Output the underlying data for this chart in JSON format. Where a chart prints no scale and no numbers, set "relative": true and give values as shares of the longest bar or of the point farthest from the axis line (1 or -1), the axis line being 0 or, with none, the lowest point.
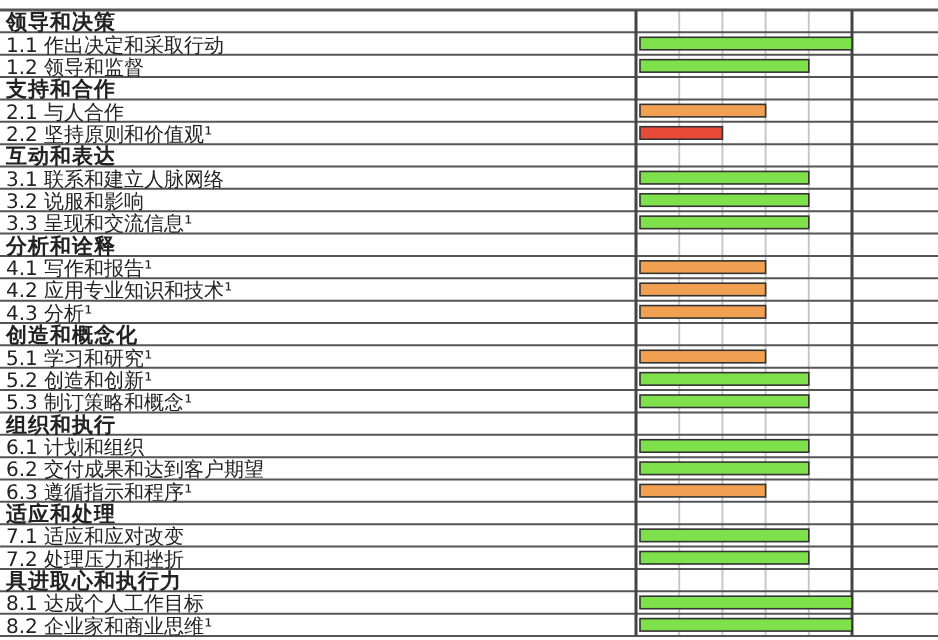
{
  "chart_data": {
    "type": "bar",
    "orientation": "horizontal",
    "relative": true,
    "grid": "x",
    "categories": [
      "领导和决策",
      "1.1 作出决定和采取行动",
      "1.2 领导和监督",
      "支持和合作",
      "2.1 与人合作",
      "2.2 坚持原则和价值观¹",
      "互动和表达",
      "3.1 联系和建立人脉网络",
      "3.2 说服和影响",
      "3.3 呈现和交流信息¹",
      "分析和诠释",
      "4.1 写作和报告¹",
      "4.2 应用专业知识和技术¹",
      "4.3 分析¹",
      "创造和概念化",
      "5.1 学习和研究¹",
      "5.2 创造和创新¹",
      "5.3 制订策略和概念¹",
      "组织和执行",
      "6.1 计划和组织",
      "6.2 交付成果和达到客户期望",
      "6.3 遵循指示和程序¹",
      "适应和处理",
      "7.1 适应和应对改变",
      "7.2 处理压力和挫折",
      "具进取心和执行力",
      "8.1 达成个人工作目标",
      "8.2 企业家和商业思维¹"
    ],
    "values": [
      null,
      1.0,
      0.8,
      null,
      0.6,
      0.4,
      null,
      0.8,
      0.8,
      0.8,
      null,
      0.6,
      0.6,
      0.6,
      null,
      0.6,
      0.8,
      0.8,
      null,
      0.8,
      0.8,
      0.6,
      null,
      0.8,
      0.8,
      null,
      1.0,
      1.0
    ],
    "colors": [
      null,
      "#7ee04a",
      "#7ee04a",
      null,
      "#f0a050",
      "#e84a3a",
      null,
      "#7ee04a",
      "#7ee04a",
      "#7ee04a",
      null,
      "#f0a050",
      "#f0a050",
      "#f0a050",
      null,
      "#f0a050",
      "#7ee04a",
      "#7ee04a",
      null,
      "#7ee04a",
      "#7ee04a",
      "#f0a050",
      null,
      "#7ee04a",
      "#7ee04a",
      null,
      "#7ee04a",
      "#7ee04a"
    ]
  }
}
